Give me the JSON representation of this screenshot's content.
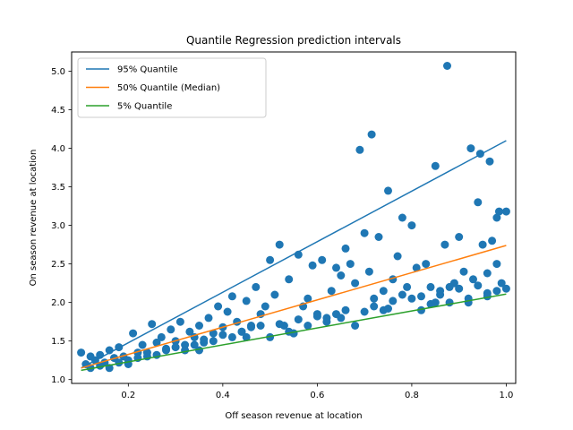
{
  "chart_data": {
    "type": "scatter",
    "title": "Quantile Regression prediction intervals",
    "xlabel": "Off season revenue at location",
    "ylabel": "On season revenue at location",
    "xlim": [
      0.08,
      1.02
    ],
    "ylim": [
      0.95,
      5.25
    ],
    "xticks": [
      0.2,
      0.4,
      0.6,
      0.8,
      1.0
    ],
    "xtick_labels": [
      "0.2",
      "0.4",
      "0.6",
      "0.8",
      "1.0"
    ],
    "yticks": [
      1.0,
      1.5,
      2.0,
      2.5,
      3.0,
      3.5,
      4.0,
      4.5,
      5.0
    ],
    "ytick_labels": [
      "1.0",
      "1.5",
      "2.0",
      "2.5",
      "3.0",
      "3.5",
      "4.0",
      "4.5",
      "5.0"
    ],
    "grid": false,
    "legend_placement": "top-left",
    "scatter": {
      "color": "#1f77b4",
      "points": [
        [
          0.1,
          1.35
        ],
        [
          0.11,
          1.2
        ],
        [
          0.12,
          1.3
        ],
        [
          0.13,
          1.25
        ],
        [
          0.14,
          1.32
        ],
        [
          0.15,
          1.22
        ],
        [
          0.16,
          1.38
        ],
        [
          0.17,
          1.28
        ],
        [
          0.18,
          1.42
        ],
        [
          0.19,
          1.3
        ],
        [
          0.2,
          1.25
        ],
        [
          0.21,
          1.6
        ],
        [
          0.22,
          1.35
        ],
        [
          0.23,
          1.45
        ],
        [
          0.24,
          1.3
        ],
        [
          0.25,
          1.72
        ],
        [
          0.26,
          1.48
        ],
        [
          0.27,
          1.55
        ],
        [
          0.28,
          1.4
        ],
        [
          0.29,
          1.65
        ],
        [
          0.3,
          1.5
        ],
        [
          0.31,
          1.75
        ],
        [
          0.32,
          1.45
        ],
        [
          0.33,
          1.62
        ],
        [
          0.34,
          1.55
        ],
        [
          0.35,
          1.7
        ],
        [
          0.36,
          1.48
        ],
        [
          0.37,
          1.8
        ],
        [
          0.38,
          1.6
        ],
        [
          0.39,
          1.95
        ],
        [
          0.4,
          1.68
        ],
        [
          0.41,
          1.88
        ],
        [
          0.42,
          2.08
        ],
        [
          0.43,
          1.75
        ],
        [
          0.44,
          1.62
        ],
        [
          0.45,
          2.02
        ],
        [
          0.46,
          1.7
        ],
        [
          0.47,
          2.2
        ],
        [
          0.48,
          1.85
        ],
        [
          0.49,
          1.95
        ],
        [
          0.5,
          2.55
        ],
        [
          0.51,
          2.1
        ],
        [
          0.52,
          2.75
        ],
        [
          0.53,
          1.7
        ],
        [
          0.54,
          2.3
        ],
        [
          0.55,
          1.6
        ],
        [
          0.56,
          2.62
        ],
        [
          0.57,
          1.95
        ],
        [
          0.58,
          2.05
        ],
        [
          0.59,
          2.48
        ],
        [
          0.6,
          1.85
        ],
        [
          0.61,
          2.55
        ],
        [
          0.62,
          1.8
        ],
        [
          0.63,
          2.15
        ],
        [
          0.64,
          2.45
        ],
        [
          0.65,
          2.35
        ],
        [
          0.66,
          2.7
        ],
        [
          0.67,
          2.5
        ],
        [
          0.68,
          2.25
        ],
        [
          0.69,
          3.98
        ],
        [
          0.7,
          2.9
        ],
        [
          0.71,
          2.4
        ],
        [
          0.715,
          4.18
        ],
        [
          0.72,
          2.05
        ],
        [
          0.73,
          2.85
        ],
        [
          0.74,
          2.15
        ],
        [
          0.75,
          3.45
        ],
        [
          0.76,
          2.3
        ],
        [
          0.77,
          2.6
        ],
        [
          0.78,
          3.1
        ],
        [
          0.79,
          2.2
        ],
        [
          0.8,
          3.0
        ],
        [
          0.81,
          2.45
        ],
        [
          0.82,
          1.9
        ],
        [
          0.83,
          2.5
        ],
        [
          0.84,
          2.2
        ],
        [
          0.85,
          3.77
        ],
        [
          0.86,
          2.1
        ],
        [
          0.87,
          2.75
        ],
        [
          0.875,
          5.07
        ],
        [
          0.88,
          2.0
        ],
        [
          0.89,
          2.25
        ],
        [
          0.9,
          2.85
        ],
        [
          0.91,
          2.4
        ],
        [
          0.92,
          2.0
        ],
        [
          0.925,
          4.0
        ],
        [
          0.93,
          2.3
        ],
        [
          0.94,
          3.3
        ],
        [
          0.945,
          3.93
        ],
        [
          0.95,
          2.75
        ],
        [
          0.96,
          2.12
        ],
        [
          0.965,
          3.83
        ],
        [
          0.97,
          2.8
        ],
        [
          0.98,
          3.1
        ],
        [
          0.985,
          3.18
        ],
        [
          0.99,
          2.25
        ],
        [
          1.0,
          2.18
        ],
        [
          1.0,
          3.18
        ],
        [
          0.98,
          2.5
        ],
        [
          0.96,
          2.38
        ],
        [
          0.12,
          1.15
        ],
        [
          0.14,
          1.18
        ],
        [
          0.16,
          1.15
        ],
        [
          0.18,
          1.22
        ],
        [
          0.2,
          1.2
        ],
        [
          0.22,
          1.28
        ],
        [
          0.24,
          1.35
        ],
        [
          0.26,
          1.32
        ],
        [
          0.28,
          1.38
        ],
        [
          0.3,
          1.42
        ],
        [
          0.32,
          1.38
        ],
        [
          0.34,
          1.45
        ],
        [
          0.36,
          1.52
        ],
        [
          0.38,
          1.5
        ],
        [
          0.4,
          1.58
        ],
        [
          0.42,
          1.55
        ],
        [
          0.44,
          1.62
        ],
        [
          0.46,
          1.68
        ],
        [
          0.48,
          1.7
        ],
        [
          0.5,
          1.55
        ],
        [
          0.52,
          1.72
        ],
        [
          0.54,
          1.62
        ],
        [
          0.56,
          1.78
        ],
        [
          0.58,
          1.7
        ],
        [
          0.6,
          1.82
        ],
        [
          0.62,
          1.75
        ],
        [
          0.64,
          1.85
        ],
        [
          0.66,
          1.9
        ],
        [
          0.68,
          1.7
        ],
        [
          0.7,
          1.88
        ],
        [
          0.72,
          1.95
        ],
        [
          0.74,
          1.9
        ],
        [
          0.76,
          2.02
        ],
        [
          0.78,
          2.1
        ],
        [
          0.8,
          2.05
        ],
        [
          0.82,
          2.08
        ],
        [
          0.84,
          1.98
        ],
        [
          0.86,
          2.15
        ],
        [
          0.88,
          2.2
        ],
        [
          0.9,
          2.18
        ],
        [
          0.92,
          2.05
        ],
        [
          0.94,
          2.22
        ],
        [
          0.96,
          2.08
        ],
        [
          0.98,
          2.15
        ],
        [
          0.35,
          1.38
        ],
        [
          0.45,
          1.55
        ],
        [
          0.55,
          1.6
        ],
        [
          0.65,
          1.8
        ],
        [
          0.75,
          1.92
        ],
        [
          0.85,
          2.0
        ]
      ]
    },
    "series": [
      {
        "name": "95% Quantile",
        "color": "#1f77b4",
        "x": [
          0.1,
          1.0
        ],
        "values": [
          1.15,
          4.1
        ]
      },
      {
        "name": "50% Quantile (Median)",
        "color": "#ff7f0e",
        "x": [
          0.1,
          1.0
        ],
        "values": [
          1.15,
          2.74
        ]
      },
      {
        "name": "5% Quantile",
        "color": "#2ca02c",
        "x": [
          0.1,
          1.0
        ],
        "values": [
          1.12,
          2.11
        ]
      }
    ]
  }
}
